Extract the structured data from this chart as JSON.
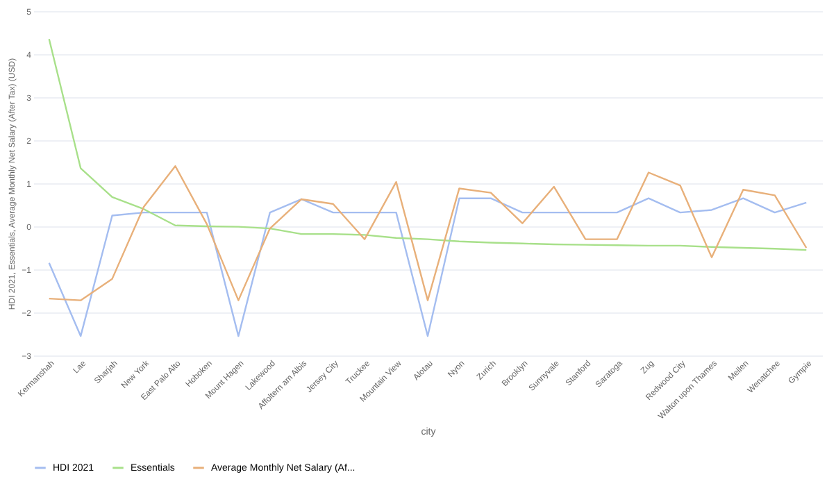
{
  "chart_data": {
    "type": "line",
    "xlabel": "city",
    "ylabel": "HDI 2021, Essentials, Average Monthly Net Salary (After Tax) (USD)",
    "categories": [
      "Kermanshah",
      "Lae",
      "Sharjah",
      "New York",
      "East Palo Alto",
      "Hoboken",
      "Mount Hagen",
      "Lakewood",
      "Affoltern am Albis",
      "Jersey City",
      "Truckee",
      "Mountain View",
      "Alotau",
      "Nyon",
      "Zurich",
      "Brooklyn",
      "Sunnyvale",
      "Stanford",
      "Saratoga",
      "Zug",
      "Redwood City",
      "Walton upon Thames",
      "Meilen",
      "Wenatchee",
      "Gympie"
    ],
    "series": [
      {
        "name": "HDI 2021",
        "color": "#a4bdf0",
        "values": [
          -0.85,
          -2.55,
          0.25,
          0.32,
          0.32,
          0.32,
          -2.55,
          0.32,
          0.63,
          0.32,
          0.32,
          0.32,
          -2.55,
          0.65,
          0.65,
          0.32,
          0.32,
          0.32,
          0.32,
          0.65,
          0.32,
          0.38,
          0.65,
          0.32,
          0.55
        ]
      },
      {
        "name": "Essentials",
        "color": "#a8e08a",
        "values": [
          4.35,
          1.35,
          0.68,
          0.4,
          0.02,
          0.0,
          -0.01,
          -0.05,
          -0.18,
          -0.18,
          -0.2,
          -0.27,
          -0.3,
          -0.35,
          -0.38,
          -0.4,
          -0.42,
          -0.43,
          -0.44,
          -0.45,
          -0.45,
          -0.48,
          -0.5,
          -0.52,
          -0.55
        ]
      },
      {
        "name": "Average Monthly Net Salary (Af...",
        "color": "#e8b07a",
        "values": [
          -1.68,
          -1.72,
          -1.22,
          0.45,
          1.4,
          0.05,
          -1.72,
          -0.05,
          0.63,
          0.52,
          -0.3,
          1.03,
          -1.72,
          0.88,
          0.78,
          0.07,
          0.92,
          -0.3,
          -0.3,
          1.25,
          0.95,
          -0.72,
          0.85,
          0.72,
          -0.5
        ]
      }
    ],
    "ylim": [
      -3,
      5
    ],
    "yticks": [
      -3,
      -2,
      -1,
      0,
      1,
      2,
      3,
      4,
      5
    ],
    "grid": "y",
    "legend": "bottom",
    "marker": "none",
    "line_style": "solid"
  }
}
